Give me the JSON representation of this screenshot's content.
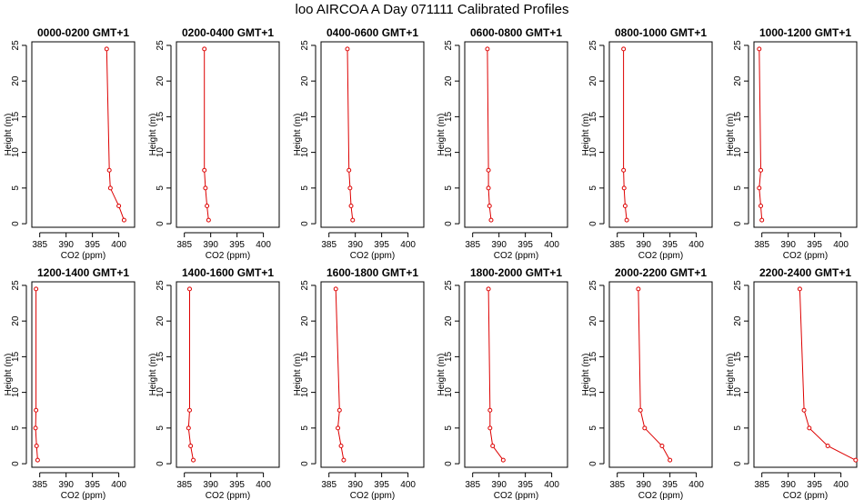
{
  "figure_title": "loo AIRCOA A  Day 071111  Calibrated Profiles",
  "chart_data": [
    {
      "type": "line",
      "title": "0000-0200 GMT+1",
      "xlabel": "CO2 (ppm)",
      "ylabel": "Height (m)",
      "xlim": [
        383.5,
        403
      ],
      "ylim": [
        -0.5,
        25.5
      ],
      "xticks": [
        385,
        390,
        395,
        400
      ],
      "yticks": [
        0,
        5,
        10,
        15,
        20,
        25
      ],
      "color": "#dd0000",
      "points": [
        {
          "x": 401.0,
          "y": 0.5
        },
        {
          "x": 400.0,
          "y": 2.5
        },
        {
          "x": 398.4,
          "y": 5.0
        },
        {
          "x": 398.2,
          "y": 7.5
        },
        {
          "x": 397.7,
          "y": 24.5
        }
      ]
    },
    {
      "type": "line",
      "title": "0200-0400 GMT+1",
      "xlabel": "CO2 (ppm)",
      "ylabel": "Height (m)",
      "xlim": [
        383.5,
        403
      ],
      "ylim": [
        -0.5,
        25.5
      ],
      "xticks": [
        385,
        390,
        395,
        400
      ],
      "yticks": [
        0,
        5,
        10,
        15,
        20,
        25
      ],
      "color": "#dd0000",
      "points": [
        {
          "x": 389.6,
          "y": 0.5
        },
        {
          "x": 389.3,
          "y": 2.5
        },
        {
          "x": 389.0,
          "y": 5.0
        },
        {
          "x": 388.8,
          "y": 7.5
        },
        {
          "x": 388.8,
          "y": 24.5
        }
      ]
    },
    {
      "type": "line",
      "title": "0400-0600 GMT+1",
      "xlabel": "CO2 (ppm)",
      "ylabel": "Height (m)",
      "xlim": [
        383.5,
        403
      ],
      "ylim": [
        -0.5,
        25.5
      ],
      "xticks": [
        385,
        390,
        395,
        400
      ],
      "yticks": [
        0,
        5,
        10,
        15,
        20,
        25
      ],
      "color": "#dd0000",
      "points": [
        {
          "x": 389.5,
          "y": 0.5
        },
        {
          "x": 389.2,
          "y": 2.5
        },
        {
          "x": 389.0,
          "y": 5.0
        },
        {
          "x": 388.8,
          "y": 7.5
        },
        {
          "x": 388.5,
          "y": 24.5
        }
      ]
    },
    {
      "type": "line",
      "title": "0600-0800 GMT+1",
      "xlabel": "CO2 (ppm)",
      "ylabel": "Height (m)",
      "xlim": [
        383.5,
        403
      ],
      "ylim": [
        -0.5,
        25.5
      ],
      "xticks": [
        385,
        390,
        395,
        400
      ],
      "yticks": [
        0,
        5,
        10,
        15,
        20,
        25
      ],
      "color": "#dd0000",
      "points": [
        {
          "x": 388.5,
          "y": 0.5
        },
        {
          "x": 388.2,
          "y": 2.5
        },
        {
          "x": 388.0,
          "y": 5.0
        },
        {
          "x": 388.0,
          "y": 7.5
        },
        {
          "x": 387.8,
          "y": 24.5
        }
      ]
    },
    {
      "type": "line",
      "title": "0800-1000 GMT+1",
      "xlabel": "CO2 (ppm)",
      "ylabel": "Height (m)",
      "xlim": [
        383.5,
        403
      ],
      "ylim": [
        -0.5,
        25.5
      ],
      "xticks": [
        385,
        390,
        395,
        400
      ],
      "yticks": [
        0,
        5,
        10,
        15,
        20,
        25
      ],
      "color": "#dd0000",
      "points": [
        {
          "x": 386.8,
          "y": 0.5
        },
        {
          "x": 386.5,
          "y": 2.5
        },
        {
          "x": 386.3,
          "y": 5.0
        },
        {
          "x": 386.2,
          "y": 7.5
        },
        {
          "x": 386.2,
          "y": 24.5
        }
      ]
    },
    {
      "type": "line",
      "title": "1000-1200 GMT+1",
      "xlabel": "CO2 (ppm)",
      "ylabel": "Height (m)",
      "xlim": [
        383.5,
        403
      ],
      "ylim": [
        -0.5,
        25.5
      ],
      "xticks": [
        385,
        390,
        395,
        400
      ],
      "yticks": [
        0,
        5,
        10,
        15,
        20,
        25
      ],
      "color": "#dd0000",
      "points": [
        {
          "x": 385.0,
          "y": 0.5
        },
        {
          "x": 384.8,
          "y": 2.5
        },
        {
          "x": 384.5,
          "y": 5.0
        },
        {
          "x": 384.8,
          "y": 7.5
        },
        {
          "x": 384.5,
          "y": 24.5
        }
      ]
    },
    {
      "type": "line",
      "title": "1200-1400 GMT+1",
      "xlabel": "CO2 (ppm)",
      "ylabel": "Height (m)",
      "xlim": [
        383.5,
        403
      ],
      "ylim": [
        -0.5,
        25.5
      ],
      "xticks": [
        385,
        390,
        395,
        400
      ],
      "yticks": [
        0,
        5,
        10,
        15,
        20,
        25
      ],
      "color": "#dd0000",
      "points": [
        {
          "x": 384.6,
          "y": 0.5
        },
        {
          "x": 384.4,
          "y": 2.5
        },
        {
          "x": 384.2,
          "y": 5.0
        },
        {
          "x": 384.3,
          "y": 7.5
        },
        {
          "x": 384.3,
          "y": 24.5
        }
      ]
    },
    {
      "type": "line",
      "title": "1400-1600 GMT+1",
      "xlabel": "CO2 (ppm)",
      "ylabel": "Height (m)",
      "xlim": [
        383.5,
        403
      ],
      "ylim": [
        -0.5,
        25.5
      ],
      "xticks": [
        385,
        390,
        395,
        400
      ],
      "yticks": [
        0,
        5,
        10,
        15,
        20,
        25
      ],
      "color": "#dd0000",
      "points": [
        {
          "x": 386.7,
          "y": 0.5
        },
        {
          "x": 386.2,
          "y": 2.5
        },
        {
          "x": 385.8,
          "y": 5.0
        },
        {
          "x": 386.0,
          "y": 7.5
        },
        {
          "x": 386.0,
          "y": 24.5
        }
      ]
    },
    {
      "type": "line",
      "title": "1600-1800 GMT+1",
      "xlabel": "CO2 (ppm)",
      "ylabel": "Height (m)",
      "xlim": [
        383.5,
        403
      ],
      "ylim": [
        -0.5,
        25.5
      ],
      "xticks": [
        385,
        390,
        395,
        400
      ],
      "yticks": [
        0,
        5,
        10,
        15,
        20,
        25
      ],
      "color": "#dd0000",
      "points": [
        {
          "x": 387.8,
          "y": 0.5
        },
        {
          "x": 387.3,
          "y": 2.5
        },
        {
          "x": 386.7,
          "y": 5.0
        },
        {
          "x": 387.0,
          "y": 7.5
        },
        {
          "x": 386.3,
          "y": 24.5
        }
      ]
    },
    {
      "type": "line",
      "title": "1800-2000 GMT+1",
      "xlabel": "CO2 (ppm)",
      "ylabel": "Height (m)",
      "xlim": [
        383.5,
        403
      ],
      "ylim": [
        -0.5,
        25.5
      ],
      "xticks": [
        385,
        390,
        395,
        400
      ],
      "yticks": [
        0,
        5,
        10,
        15,
        20,
        25
      ],
      "color": "#dd0000",
      "points": [
        {
          "x": 390.8,
          "y": 0.5
        },
        {
          "x": 388.8,
          "y": 2.5
        },
        {
          "x": 388.3,
          "y": 5.0
        },
        {
          "x": 388.3,
          "y": 7.5
        },
        {
          "x": 388.0,
          "y": 24.5
        }
      ]
    },
    {
      "type": "line",
      "title": "2000-2200 GMT+1",
      "xlabel": "CO2 (ppm)",
      "ylabel": "Height (m)",
      "xlim": [
        383.5,
        403
      ],
      "ylim": [
        -0.5,
        25.5
      ],
      "xticks": [
        385,
        390,
        395,
        400
      ],
      "yticks": [
        0,
        5,
        10,
        15,
        20,
        25
      ],
      "color": "#dd0000",
      "points": [
        {
          "x": 395.0,
          "y": 0.5
        },
        {
          "x": 393.5,
          "y": 2.5
        },
        {
          "x": 390.2,
          "y": 5.0
        },
        {
          "x": 389.4,
          "y": 7.5
        },
        {
          "x": 389.0,
          "y": 24.5
        }
      ]
    },
    {
      "type": "line",
      "title": "2200-2400 GMT+1",
      "xlabel": "CO2 (ppm)",
      "ylabel": "Height (m)",
      "xlim": [
        383.5,
        403
      ],
      "ylim": [
        -0.5,
        25.5
      ],
      "xticks": [
        385,
        390,
        395,
        400
      ],
      "yticks": [
        0,
        5,
        10,
        15,
        20,
        25
      ],
      "color": "#dd0000",
      "points": [
        {
          "x": 402.8,
          "y": 0.5
        },
        {
          "x": 397.5,
          "y": 2.5
        },
        {
          "x": 394.0,
          "y": 5.0
        },
        {
          "x": 393.0,
          "y": 7.5
        },
        {
          "x": 392.2,
          "y": 24.5
        }
      ]
    }
  ]
}
